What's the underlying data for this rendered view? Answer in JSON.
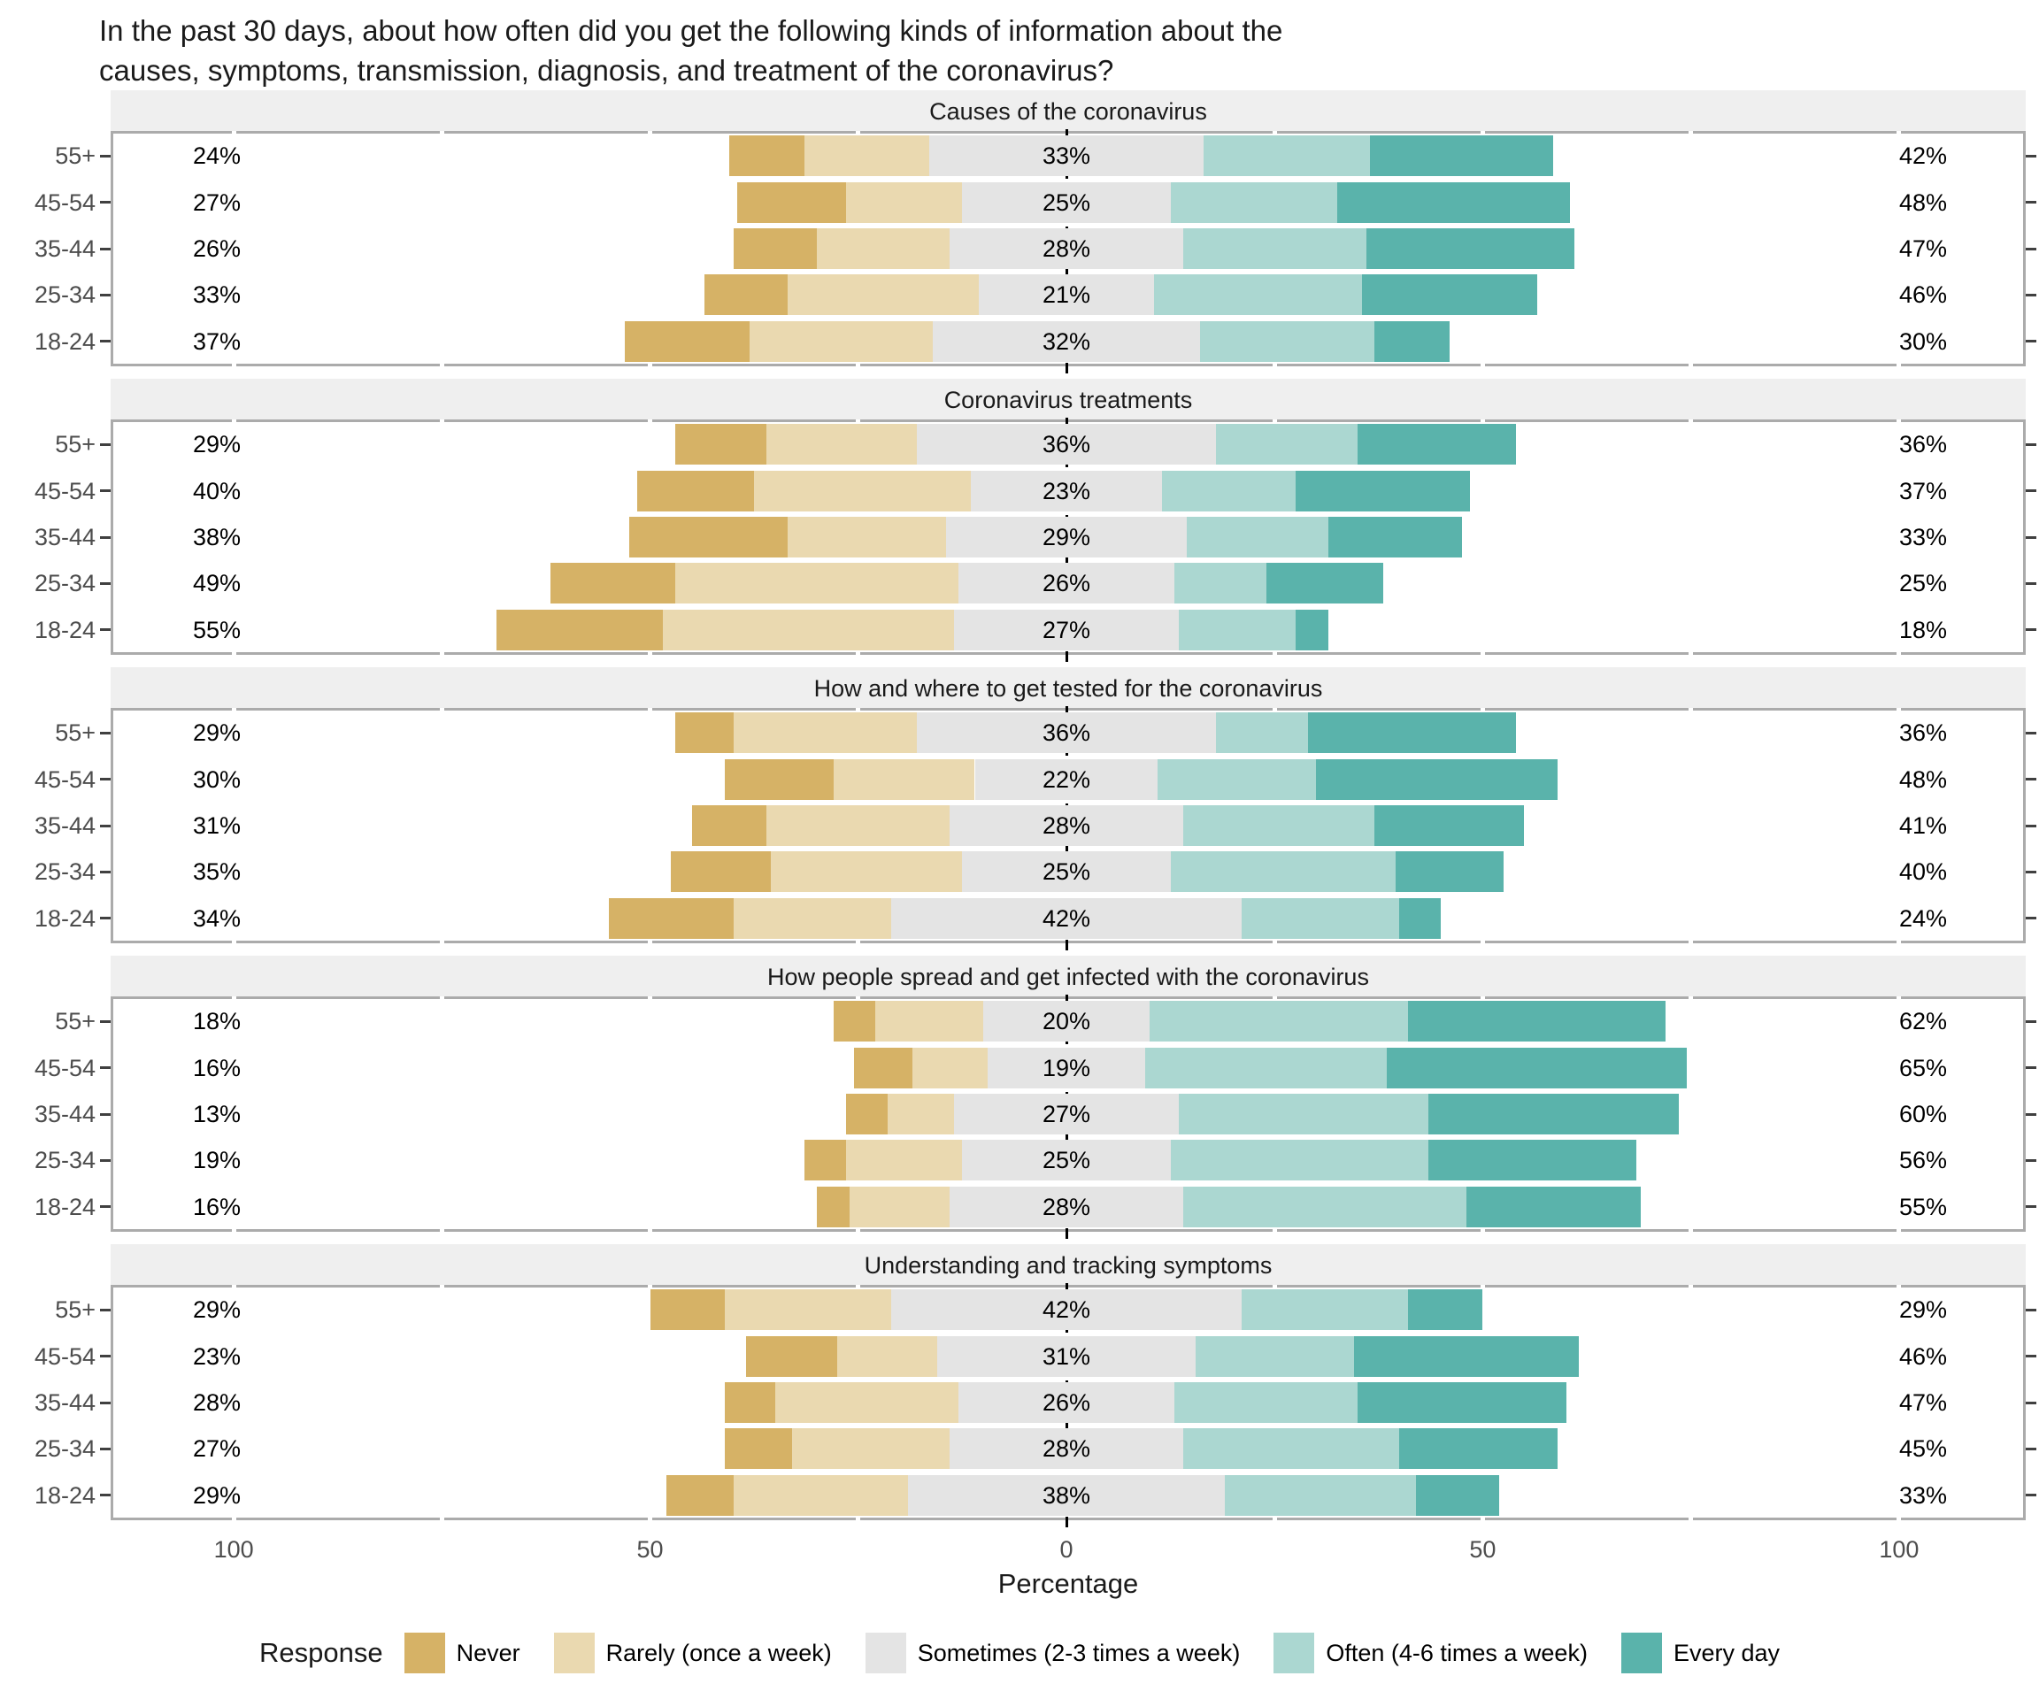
{
  "title": {
    "line1": "In the past 30 days, about how often did you get the following kinds of information about the",
    "line2": "causes, symptoms, transmission, diagnosis, and treatment of the coronavirus?"
  },
  "axis": {
    "label": "Percentage",
    "tick_labels": [
      "100",
      "50",
      "0",
      "50",
      "100"
    ],
    "tick_values": [
      -100,
      -50,
      0,
      50,
      100
    ],
    "range": 115,
    "minor_grid_step": 25
  },
  "legend": {
    "title": "Response",
    "items": [
      {
        "key": "never",
        "label": "Never",
        "color": "#D6B266"
      },
      {
        "key": "rarely",
        "label": "Rarely (once a week)",
        "color": "#EAD9B0"
      },
      {
        "key": "sometimes",
        "label": "Sometimes (2-3 times a week)",
        "color": "#E4E4E4"
      },
      {
        "key": "often",
        "label": "Often (4-6 times a week)",
        "color": "#ABD7D1"
      },
      {
        "key": "every_day",
        "label": "Every day",
        "color": "#5AB3AB"
      }
    ]
  },
  "chart_data": {
    "type": "bar",
    "stacking": "diverging-centered",
    "note": "Likert diverging stacked bars; 'sometimes' is split evenly across the zero line; left label = never+rarely, center label = sometimes, right label = often+every_day",
    "series_keys": [
      "never",
      "rarely",
      "sometimes",
      "often",
      "every_day"
    ],
    "categories": [
      "55+",
      "45-54",
      "35-44",
      "25-34",
      "18-24"
    ],
    "xlim": [
      -115,
      115
    ],
    "panels": [
      {
        "title": "Causes of the coronavirus",
        "rows": [
          {
            "group": "55+",
            "never": 9,
            "rarely": 15,
            "sometimes": 33,
            "often": 20,
            "every_day": 22,
            "label_left": "24%",
            "label_center": "33%",
            "label_right": "42%"
          },
          {
            "group": "45-54",
            "never": 13,
            "rarely": 14,
            "sometimes": 25,
            "often": 20,
            "every_day": 28,
            "label_left": "27%",
            "label_center": "25%",
            "label_right": "48%"
          },
          {
            "group": "35-44",
            "never": 10,
            "rarely": 16,
            "sometimes": 28,
            "often": 22,
            "every_day": 25,
            "label_left": "26%",
            "label_center": "28%",
            "label_right": "47%"
          },
          {
            "group": "25-34",
            "never": 10,
            "rarely": 23,
            "sometimes": 21,
            "often": 25,
            "every_day": 21,
            "label_left": "33%",
            "label_center": "21%",
            "label_right": "46%"
          },
          {
            "group": "18-24",
            "never": 15,
            "rarely": 22,
            "sometimes": 32,
            "often": 21,
            "every_day": 9,
            "label_left": "37%",
            "label_center": "32%",
            "label_right": "30%"
          }
        ]
      },
      {
        "title": "Coronavirus treatments",
        "rows": [
          {
            "group": "55+",
            "never": 11,
            "rarely": 18,
            "sometimes": 36,
            "often": 17,
            "every_day": 19,
            "label_left": "29%",
            "label_center": "36%",
            "label_right": "36%"
          },
          {
            "group": "45-54",
            "never": 14,
            "rarely": 26,
            "sometimes": 23,
            "often": 16,
            "every_day": 21,
            "label_left": "40%",
            "label_center": "23%",
            "label_right": "37%"
          },
          {
            "group": "35-44",
            "never": 19,
            "rarely": 19,
            "sometimes": 29,
            "often": 17,
            "every_day": 16,
            "label_left": "38%",
            "label_center": "29%",
            "label_right": "33%"
          },
          {
            "group": "25-34",
            "never": 15,
            "rarely": 34,
            "sometimes": 26,
            "often": 11,
            "every_day": 14,
            "label_left": "49%",
            "label_center": "26%",
            "label_right": "25%"
          },
          {
            "group": "18-24",
            "never": 20,
            "rarely": 35,
            "sometimes": 27,
            "often": 14,
            "every_day": 4,
            "label_left": "55%",
            "label_center": "27%",
            "label_right": "18%"
          }
        ]
      },
      {
        "title": "How and where to get tested for the coronavirus",
        "rows": [
          {
            "group": "55+",
            "never": 7,
            "rarely": 22,
            "sometimes": 36,
            "often": 11,
            "every_day": 25,
            "label_left": "29%",
            "label_center": "36%",
            "label_right": "36%"
          },
          {
            "group": "45-54",
            "never": 13,
            "rarely": 17,
            "sometimes": 22,
            "often": 19,
            "every_day": 29,
            "label_left": "30%",
            "label_center": "22%",
            "label_right": "48%"
          },
          {
            "group": "35-44",
            "never": 9,
            "rarely": 22,
            "sometimes": 28,
            "often": 23,
            "every_day": 18,
            "label_left": "31%",
            "label_center": "28%",
            "label_right": "41%"
          },
          {
            "group": "25-34",
            "never": 12,
            "rarely": 23,
            "sometimes": 25,
            "often": 27,
            "every_day": 13,
            "label_left": "35%",
            "label_center": "25%",
            "label_right": "40%"
          },
          {
            "group": "18-24",
            "never": 15,
            "rarely": 19,
            "sometimes": 42,
            "often": 19,
            "every_day": 5,
            "label_left": "34%",
            "label_center": "42%",
            "label_right": "24%"
          }
        ]
      },
      {
        "title": "How people spread and get infected with the coronavirus",
        "rows": [
          {
            "group": "55+",
            "never": 5,
            "rarely": 13,
            "sometimes": 20,
            "often": 31,
            "every_day": 31,
            "label_left": "18%",
            "label_center": "20%",
            "label_right": "62%"
          },
          {
            "group": "45-54",
            "never": 7,
            "rarely": 9,
            "sometimes": 19,
            "often": 29,
            "every_day": 36,
            "label_left": "16%",
            "label_center": "19%",
            "label_right": "65%"
          },
          {
            "group": "35-44",
            "never": 5,
            "rarely": 8,
            "sometimes": 27,
            "often": 30,
            "every_day": 30,
            "label_left": "13%",
            "label_center": "27%",
            "label_right": "60%"
          },
          {
            "group": "25-34",
            "never": 5,
            "rarely": 14,
            "sometimes": 25,
            "often": 31,
            "every_day": 25,
            "label_left": "19%",
            "label_center": "25%",
            "label_right": "56%"
          },
          {
            "group": "18-24",
            "never": 4,
            "rarely": 12,
            "sometimes": 28,
            "often": 34,
            "every_day": 21,
            "label_left": "16%",
            "label_center": "28%",
            "label_right": "55%"
          }
        ]
      },
      {
        "title": "Understanding and tracking symptoms",
        "rows": [
          {
            "group": "55+",
            "never": 9,
            "rarely": 20,
            "sometimes": 42,
            "often": 20,
            "every_day": 9,
            "label_left": "29%",
            "label_center": "42%",
            "label_right": "29%"
          },
          {
            "group": "45-54",
            "never": 11,
            "rarely": 12,
            "sometimes": 31,
            "often": 19,
            "every_day": 27,
            "label_left": "23%",
            "label_center": "31%",
            "label_right": "46%"
          },
          {
            "group": "35-44",
            "never": 6,
            "rarely": 22,
            "sometimes": 26,
            "often": 22,
            "every_day": 25,
            "label_left": "28%",
            "label_center": "26%",
            "label_right": "47%"
          },
          {
            "group": "25-34",
            "never": 8,
            "rarely": 19,
            "sometimes": 28,
            "often": 26,
            "every_day": 19,
            "label_left": "27%",
            "label_center": "28%",
            "label_right": "45%"
          },
          {
            "group": "18-24",
            "never": 8,
            "rarely": 21,
            "sometimes": 38,
            "often": 23,
            "every_day": 10,
            "label_left": "29%",
            "label_center": "38%",
            "label_right": "33%"
          }
        ]
      }
    ]
  }
}
